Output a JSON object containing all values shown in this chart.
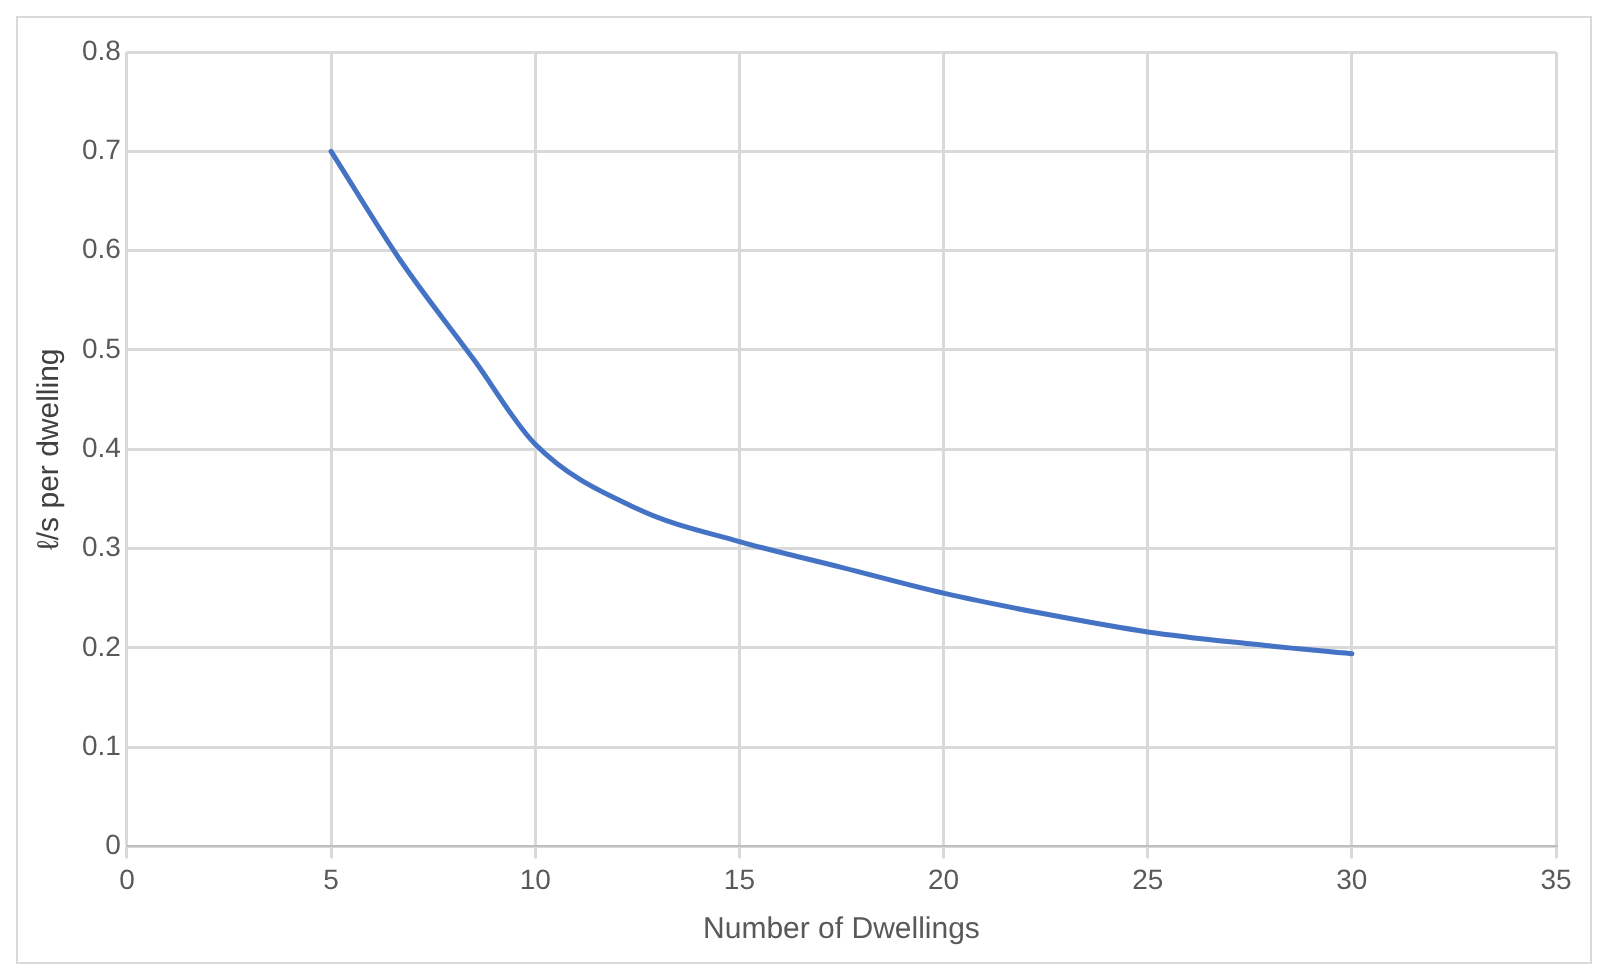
{
  "chart_data": {
    "type": "line",
    "xlabel": "Number of Dwellings",
    "ylabel": "ℓ/s per dwelling",
    "series": [
      {
        "color": "#4472c4",
        "x": [
          5,
          6.7,
          8.5,
          10,
          12.5,
          15,
          17.5,
          20,
          22.5,
          25,
          27.5,
          30
        ],
        "values": [
          0.7,
          0.59,
          0.49,
          0.405,
          0.34,
          0.307,
          0.281,
          0.255,
          0.234,
          0.216,
          0.204,
          0.194
        ]
      }
    ],
    "xlim": [
      0,
      35
    ],
    "xticks": [
      0,
      5,
      10,
      15,
      20,
      25,
      30,
      35
    ],
    "ylim": [
      0,
      0.8
    ],
    "yticks": [
      0,
      0.1,
      0.2,
      0.3,
      0.4,
      0.5,
      0.6,
      0.7,
      0.8
    ],
    "grid": true,
    "legend": false,
    "marker": "none",
    "line_style": "solid"
  }
}
